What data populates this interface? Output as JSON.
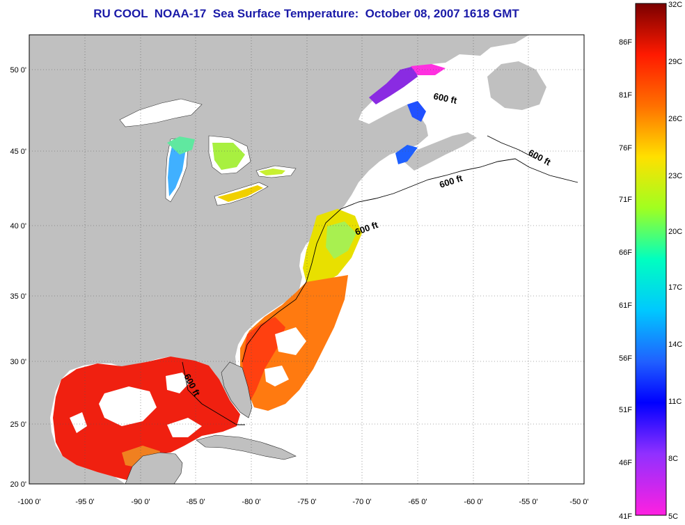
{
  "title": "RU COOL  NOAA-17  Sea Surface Temperature:  October 08, 2007 1618 GMT",
  "lat_labels": [
    "50 0'",
    "45 0'",
    "40 0'",
    "35 0'",
    "30 0'",
    "25 0'",
    "20 0'"
  ],
  "lon_labels": [
    "-100 0'",
    "-95 0'",
    "-90 0'",
    "-85 0'",
    "-80 0'",
    "-75 0'",
    "-70 0'",
    "-65 0'",
    "-60 0'",
    "-55 0'",
    "-50 0'"
  ],
  "contour_label": "600 ft",
  "colorbar": {
    "celsius": [
      "32C",
      "29C",
      "26C",
      "23C",
      "20C",
      "17C",
      "14C",
      "11C",
      "8C",
      "5C"
    ],
    "fahrenheit": [
      "86F",
      "81F",
      "76F",
      "71F",
      "66F",
      "61F",
      "56F",
      "51F",
      "46F",
      "41F"
    ]
  },
  "colors": {
    "land": "#c0c0c0",
    "ocean_no_data": "#ffffff",
    "title": "#1a1aa8"
  }
}
